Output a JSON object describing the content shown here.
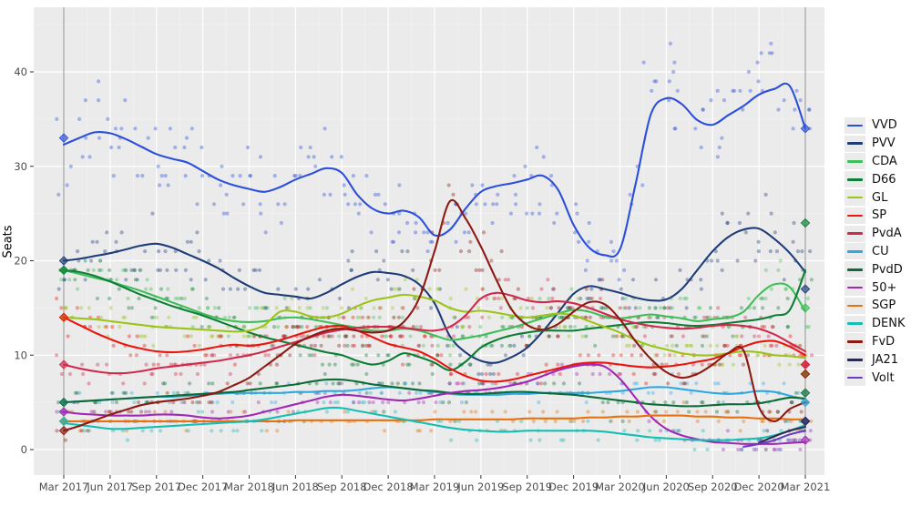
{
  "chart_data": {
    "type": "scatter",
    "title": "",
    "xlabel": "",
    "ylabel": "Seats",
    "legend_position": "right",
    "grid": "on",
    "panel_bg": "#ebebeb",
    "grid_major_color": "#ffffff",
    "grid_minor_color": "#f3f3f3",
    "axis_text_color": "#4d4d4d",
    "election_line_color": "#5a5a5a",
    "ylim": [
      -2.7,
      46.9
    ],
    "y_ticks": [
      0,
      10,
      20,
      30,
      40
    ],
    "x_tick_labels": [
      "Mar 2017",
      "Jun 2017",
      "Sep 2017",
      "Dec 2017",
      "Mar 2018",
      "Jun 2018",
      "Sep 2018",
      "Dec 2018",
      "Mar 2019",
      "Jun 2019",
      "Sep 2019",
      "Dec 2019",
      "Mar 2020",
      "Jun 2020",
      "Sep 2020",
      "Dec 2020",
      "Mar 2021"
    ],
    "x_tick_months": [
      0,
      3,
      6,
      9,
      12,
      15,
      18,
      21,
      24,
      27,
      30,
      33,
      36,
      39,
      42,
      45,
      48
    ],
    "months_start": "2017-03",
    "months_end": "2021-03",
    "series": [
      {
        "id": "vvd",
        "name": "VVD",
        "color": "#2b4fdb",
        "start": 0,
        "values": [
          32.3,
          33.0,
          33.6,
          33.5,
          32.9,
          32.1,
          31.3,
          30.8,
          30.4,
          29.5,
          28.6,
          28.0,
          27.6,
          27.3,
          27.8,
          28.6,
          29.2,
          29.8,
          29.3,
          27.0,
          25.5,
          25.0,
          25.3,
          24.6,
          22.7,
          23.3,
          25.5,
          27.3,
          27.9,
          28.2,
          28.6,
          29.0,
          27.5,
          23.8,
          21.4,
          20.6,
          21.2,
          28.0,
          35.5,
          37.2,
          36.6,
          34.9,
          34.4,
          35.4,
          36.4,
          37.6,
          38.2,
          38.5,
          34.0
        ]
      },
      {
        "id": "pvv",
        "name": "PVV",
        "color": "#1e3d78",
        "start": 0,
        "values": [
          20.0,
          20.2,
          20.5,
          20.8,
          21.2,
          21.6,
          21.8,
          21.4,
          20.7,
          20.0,
          19.2,
          18.2,
          17.3,
          16.6,
          16.4,
          16.2,
          16.0,
          16.6,
          17.5,
          18.3,
          18.8,
          18.7,
          18.4,
          17.5,
          15.5,
          12.0,
          10.3,
          9.4,
          9.2,
          9.8,
          10.8,
          12.5,
          14.5,
          16.5,
          17.3,
          17.0,
          16.6,
          16.1,
          15.8,
          15.9,
          17.0,
          19.0,
          21.0,
          22.5,
          23.3,
          23.4,
          22.3,
          20.8,
          18.8
        ]
      },
      {
        "id": "cda",
        "name": "CDA",
        "color": "#3fbf57",
        "start": 0,
        "values": [
          19.0,
          18.6,
          18.2,
          17.8,
          17.3,
          16.8,
          16.2,
          15.6,
          15.0,
          14.4,
          13.9,
          13.6,
          13.5,
          13.6,
          13.9,
          14.0,
          13.8,
          13.5,
          13.2,
          12.9,
          12.6,
          12.6,
          12.8,
          12.6,
          12.1,
          11.6,
          11.8,
          12.1,
          12.5,
          12.9,
          13.4,
          13.9,
          14.4,
          14.8,
          14.6,
          14.1,
          13.9,
          14.1,
          14.3,
          14.1,
          13.9,
          13.6,
          13.8,
          14.0,
          14.6,
          16.4,
          17.5,
          17.2,
          14.6
        ]
      },
      {
        "id": "d66",
        "name": "D66",
        "color": "#0c7e36",
        "start": 0,
        "values": [
          19.0,
          18.8,
          18.4,
          17.8,
          17.1,
          16.4,
          15.8,
          15.2,
          14.7,
          14.2,
          13.6,
          13.0,
          12.4,
          11.9,
          11.5,
          11.1,
          10.7,
          10.3,
          10.0,
          9.4,
          9.0,
          9.4,
          10.2,
          9.8,
          9.2,
          8.4,
          9.3,
          10.8,
          11.6,
          12.1,
          12.4,
          12.6,
          12.6,
          12.6,
          12.8,
          13.0,
          13.2,
          13.4,
          13.5,
          13.4,
          13.2,
          13.1,
          13.2,
          13.4,
          13.6,
          13.8,
          14.2,
          14.8,
          19.0
        ]
      },
      {
        "id": "gl",
        "name": "GL",
        "color": "#9cc41a",
        "start": 0,
        "values": [
          14.0,
          13.9,
          13.8,
          13.6,
          13.4,
          13.2,
          13.0,
          12.9,
          12.8,
          12.7,
          12.6,
          12.5,
          12.6,
          13.2,
          14.6,
          14.6,
          14.1,
          14.0,
          14.4,
          15.2,
          15.8,
          16.1,
          16.4,
          16.2,
          15.8,
          15.0,
          14.6,
          14.7,
          14.5,
          14.2,
          14.0,
          14.2,
          14.4,
          14.2,
          13.6,
          13.0,
          12.4,
          11.6,
          11.0,
          10.6,
          10.2,
          10.0,
          10.0,
          10.2,
          10.4,
          10.3,
          10.0,
          9.9,
          9.7
        ]
      },
      {
        "id": "sp",
        "name": "SP",
        "color": "#e8170f",
        "start": 0,
        "values": [
          14.0,
          13.2,
          12.4,
          11.7,
          11.1,
          10.7,
          10.4,
          10.3,
          10.4,
          10.6,
          10.9,
          11.1,
          11.0,
          11.2,
          11.6,
          12.1,
          12.6,
          13.0,
          13.1,
          12.6,
          11.9,
          11.2,
          10.8,
          10.4,
          9.6,
          8.6,
          7.8,
          7.3,
          7.2,
          7.4,
          7.8,
          8.2,
          8.6,
          9.0,
          9.2,
          9.2,
          9.0,
          8.8,
          8.7,
          8.8,
          9.0,
          9.3,
          9.6,
          10.2,
          10.9,
          11.4,
          11.5,
          10.9,
          10.0
        ]
      },
      {
        "id": "pvda",
        "name": "PvdA",
        "color": "#d0294b",
        "start": 0,
        "values": [
          9.0,
          8.6,
          8.3,
          8.1,
          8.1,
          8.3,
          8.6,
          8.8,
          9.0,
          9.2,
          9.4,
          9.7,
          10.0,
          10.4,
          10.9,
          11.4,
          11.9,
          12.4,
          12.7,
          12.9,
          13.0,
          13.0,
          12.9,
          12.7,
          12.6,
          13.0,
          14.2,
          16.0,
          16.6,
          16.3,
          15.8,
          15.6,
          15.7,
          15.5,
          15.0,
          14.4,
          13.8,
          13.4,
          13.1,
          12.9,
          12.8,
          12.9,
          13.1,
          13.2,
          13.1,
          12.8,
          12.2,
          11.3,
          10.4
        ]
      },
      {
        "id": "cu",
        "name": "CU",
        "color": "#2fa8e1",
        "start": 0,
        "values": [
          5.0,
          5.1,
          5.2,
          5.3,
          5.4,
          5.5,
          5.6,
          5.6,
          5.7,
          5.8,
          5.9,
          6.0,
          6.0,
          6.0,
          6.0,
          6.1,
          6.1,
          6.2,
          6.2,
          6.3,
          6.5,
          6.6,
          6.5,
          6.3,
          6.1,
          5.9,
          5.8,
          5.8,
          5.8,
          5.9,
          5.9,
          6.0,
          6.0,
          6.0,
          6.0,
          6.1,
          6.2,
          6.4,
          6.6,
          6.6,
          6.4,
          6.2,
          6.0,
          5.9,
          6.0,
          6.2,
          6.1,
          5.7,
          5.3
        ]
      },
      {
        "id": "pvdd",
        "name": "PvdD",
        "color": "#0d6b38",
        "start": 0,
        "values": [
          5.0,
          5.1,
          5.2,
          5.3,
          5.4,
          5.5,
          5.6,
          5.7,
          5.8,
          5.9,
          6.0,
          6.1,
          6.3,
          6.5,
          6.7,
          6.9,
          7.2,
          7.4,
          7.4,
          7.2,
          6.9,
          6.7,
          6.5,
          6.3,
          6.2,
          6.0,
          5.9,
          5.9,
          6.0,
          6.1,
          6.1,
          6.0,
          5.9,
          5.8,
          5.6,
          5.4,
          5.2,
          5.0,
          4.8,
          4.7,
          4.6,
          4.6,
          4.7,
          4.8,
          4.8,
          4.9,
          5.2,
          5.5,
          5.4
        ]
      },
      {
        "id": "p50",
        "name": "50+",
        "color": "#a128b5",
        "start": 0,
        "values": [
          4.0,
          3.8,
          3.7,
          3.6,
          3.6,
          3.6,
          3.7,
          3.7,
          3.6,
          3.4,
          3.3,
          3.4,
          3.6,
          4.0,
          4.4,
          4.8,
          5.2,
          5.6,
          5.8,
          5.7,
          5.5,
          5.3,
          5.2,
          5.4,
          5.7,
          6.0,
          6.2,
          6.3,
          6.5,
          6.8,
          7.2,
          7.8,
          8.4,
          8.8,
          9.0,
          8.8,
          7.5,
          5.5,
          3.5,
          2.2,
          1.5,
          1.1,
          0.8,
          0.7,
          0.6,
          0.6,
          0.6,
          0.7,
          0.8
        ]
      },
      {
        "id": "sgp",
        "name": "SGP",
        "color": "#e8700e",
        "start": 0,
        "values": [
          3.0,
          3.0,
          3.0,
          3.0,
          3.0,
          3.0,
          3.0,
          3.0,
          3.0,
          3.0,
          3.0,
          3.0,
          3.0,
          3.0,
          3.0,
          3.1,
          3.1,
          3.1,
          3.1,
          3.1,
          3.1,
          3.1,
          3.1,
          3.1,
          3.2,
          3.2,
          3.2,
          3.2,
          3.2,
          3.2,
          3.3,
          3.3,
          3.3,
          3.3,
          3.4,
          3.4,
          3.5,
          3.5,
          3.6,
          3.6,
          3.6,
          3.5,
          3.5,
          3.4,
          3.4,
          3.3,
          3.3,
          3.2,
          3.2
        ]
      },
      {
        "id": "denk",
        "name": "DENK",
        "color": "#16bdb2",
        "start": 0,
        "values": [
          2.8,
          2.6,
          2.4,
          2.2,
          2.2,
          2.3,
          2.4,
          2.5,
          2.6,
          2.7,
          2.8,
          2.9,
          3.0,
          3.2,
          3.5,
          3.8,
          4.1,
          4.4,
          4.4,
          4.1,
          3.8,
          3.5,
          3.2,
          2.9,
          2.6,
          2.3,
          2.1,
          2.0,
          1.9,
          1.9,
          2.0,
          2.0,
          2.0,
          2.0,
          2.0,
          1.9,
          1.7,
          1.5,
          1.3,
          1.2,
          1.1,
          1.0,
          1.0,
          1.0,
          1.1,
          1.2,
          1.5,
          2.0,
          2.6
        ]
      },
      {
        "id": "fvd",
        "name": "FvD",
        "color": "#8c1a12",
        "start": 0,
        "values": [
          2.0,
          2.5,
          3.1,
          3.7,
          4.2,
          4.7,
          5.0,
          5.2,
          5.4,
          5.7,
          6.1,
          6.8,
          7.6,
          8.8,
          10.0,
          11.2,
          12.0,
          12.6,
          12.8,
          12.6,
          12.4,
          12.6,
          13.5,
          16.0,
          21.0,
          26.3,
          24.5,
          21.5,
          18.0,
          14.8,
          13.2,
          12.7,
          13.3,
          14.6,
          15.6,
          15.4,
          13.8,
          11.5,
          9.6,
          8.2,
          7.6,
          8.0,
          9.0,
          10.2,
          10.5,
          4.5,
          3.0,
          4.3,
          5.0
        ]
      },
      {
        "id": "ja21",
        "name": "JA21",
        "color": "#272b54",
        "start": 45,
        "values": [
          0.7,
          1.4,
          2.0,
          2.4
        ]
      },
      {
        "id": "volt",
        "name": "Volt",
        "color": "#6d3bbf",
        "start": 44,
        "values": [
          0.3,
          0.6,
          1.0,
          1.6,
          2.0
        ]
      }
    ],
    "elections": [
      {
        "label": "Mar 2017",
        "month": 0,
        "results": {
          "VVD": 33,
          "PVV": 20,
          "CDA": 19,
          "D66": 19,
          "GL": 14,
          "SP": 14,
          "PvdA": 9,
          "CU": 5,
          "PvdD": 5,
          "50+": 4,
          "SGP": 3,
          "DENK": 3,
          "FvD": 2
        }
      },
      {
        "label": "Mar 2021",
        "month": 48,
        "results": {
          "VVD": 34,
          "D66": 24,
          "PVV": 17,
          "CDA": 15,
          "SP": 9,
          "PvdA": 9,
          "GL": 8,
          "FvD": 8,
          "PvdD": 6,
          "CU": 5,
          "SGP": 3,
          "DENK": 3,
          "Volt": 3,
          "JA21": 3,
          "50+": 1
        }
      }
    ]
  }
}
